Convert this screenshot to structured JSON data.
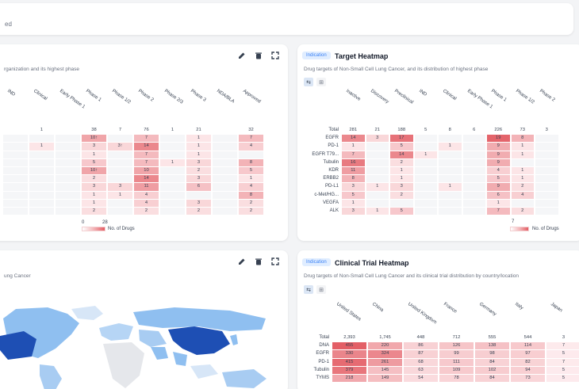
{
  "topbar": {
    "text": "ed"
  },
  "card_tl": {
    "subtitle": "rganization and its highest phase",
    "columns": [
      "IND",
      "Clinical",
      "Early Phase 1",
      "Phase 1",
      "Phase 1/2",
      "Phase 2",
      "Phase 2/3",
      "Phase 3",
      "NDA/BLA",
      "Approved"
    ],
    "rows": [
      [
        "",
        "1",
        "",
        "38",
        "7",
        "76",
        "1",
        "21",
        "",
        "32"
      ],
      [
        "",
        "",
        "",
        "10↑",
        "",
        "7",
        "",
        "1",
        "",
        "7"
      ],
      [
        "",
        "1",
        "",
        "3",
        "3↑",
        "14",
        "",
        "1",
        "",
        "4"
      ],
      [
        "",
        "",
        "",
        "1",
        "",
        "7",
        "",
        "1",
        "",
        ""
      ],
      [
        "",
        "",
        "",
        "5",
        "",
        "7",
        "1",
        "3",
        "",
        "8"
      ],
      [
        "",
        "",
        "",
        "10↑",
        "",
        "10",
        "",
        "2",
        "",
        "5"
      ],
      [
        "",
        "",
        "",
        "2",
        "",
        "14",
        "",
        "3",
        "",
        "1"
      ],
      [
        "",
        "",
        "",
        "3",
        "3",
        "11",
        "",
        "6",
        "",
        "4"
      ],
      [
        "",
        "",
        "",
        "1",
        "1",
        "4",
        "",
        "",
        "",
        "8"
      ],
      [
        "",
        "",
        "",
        "1",
        "",
        "4",
        "",
        "3",
        "",
        "2"
      ],
      [
        "",
        "",
        "",
        "2",
        "",
        "2",
        "",
        "2",
        "",
        "2"
      ]
    ],
    "legend_min": "0",
    "legend_max": "28",
    "legend_label": "No. of Drugs"
  },
  "card_tr": {
    "badge": "Indication",
    "title": "Target Heatmap",
    "subtitle": "Drug targets of Non-Small Cell Lung Cancer, and its distribution of highest phase",
    "columns": [
      "Inactive",
      "Discovery",
      "Preclinical",
      "IND",
      "Clinical",
      "Early Phase 1",
      "Phase 1",
      "Phase 1/2",
      "Phase 2"
    ],
    "row_labels": [
      "Total",
      "EGFR",
      "PD-1",
      "EGFR T79...",
      "Tubulin",
      "KDR",
      "ERBB2",
      "PD-L1",
      "c-Met/HG...",
      "VEGFA",
      "ALK"
    ],
    "rows": [
      [
        "281",
        "21",
        "188",
        "5",
        "8",
        "6",
        "226",
        "73",
        "3"
      ],
      [
        "14",
        "3",
        "17",
        "",
        "",
        "",
        "19",
        "8",
        ""
      ],
      [
        "1",
        "",
        "5",
        "",
        "1",
        "",
        "9",
        "1",
        ""
      ],
      [
        "7",
        "",
        "14",
        "1",
        "",
        "",
        "9",
        "1",
        ""
      ],
      [
        "16",
        "",
        "2",
        "",
        "",
        "",
        "9",
        "",
        ""
      ],
      [
        "11",
        "",
        "1",
        "",
        "",
        "",
        "4",
        "1",
        ""
      ],
      [
        "8",
        "",
        "1",
        "",
        "",
        "",
        "5",
        "1",
        ""
      ],
      [
        "3",
        "1",
        "3",
        "",
        "1",
        "",
        "9",
        "2",
        ""
      ],
      [
        "5",
        "",
        "2",
        "",
        "",
        "",
        "6",
        "4",
        ""
      ],
      [
        "1",
        "",
        "",
        "",
        "",
        "",
        "1",
        "",
        ""
      ],
      [
        "3",
        "1",
        "5",
        "",
        "",
        "",
        "7",
        "2",
        ""
      ]
    ],
    "legend_min": "7",
    "legend_label": "No. of Drugs"
  },
  "card_bl": {
    "subtitle": "ung Cancer"
  },
  "card_br": {
    "badge": "Indication",
    "title": "Clinical Trial Heatmap",
    "subtitle": "Drug targets of Non-Small Cell Lung Cancer and its clinical trial distribution by country/location",
    "columns": [
      "United States",
      "China",
      "United Kingdom",
      "France",
      "Germany",
      "Italy",
      "Japan"
    ],
    "row_labels": [
      "Total",
      "DNA",
      "EGFR",
      "PD-1",
      "Tubulin",
      "TYMS"
    ],
    "rows": [
      [
        "2,393",
        "1,745",
        "448",
        "712",
        "555",
        "544",
        "3"
      ],
      [
        "455",
        "220",
        "86",
        "126",
        "138",
        "114",
        "7"
      ],
      [
        "330",
        "324",
        "87",
        "99",
        "98",
        "97",
        "5"
      ],
      [
        "415",
        "261",
        "68",
        "111",
        "84",
        "82",
        "7"
      ],
      [
        "379",
        "145",
        "63",
        "109",
        "102",
        "94",
        "5"
      ],
      [
        "218",
        "149",
        "54",
        "78",
        "84",
        "73",
        "5"
      ]
    ]
  },
  "colors": {
    "accent": "#3b82f6",
    "heat_low": "#fbe5e6",
    "heat_high": "#e35d64"
  },
  "icons": [
    "edit-icon",
    "trash-icon",
    "expand-icon",
    "grid-view-icon",
    "table-view-icon"
  ]
}
